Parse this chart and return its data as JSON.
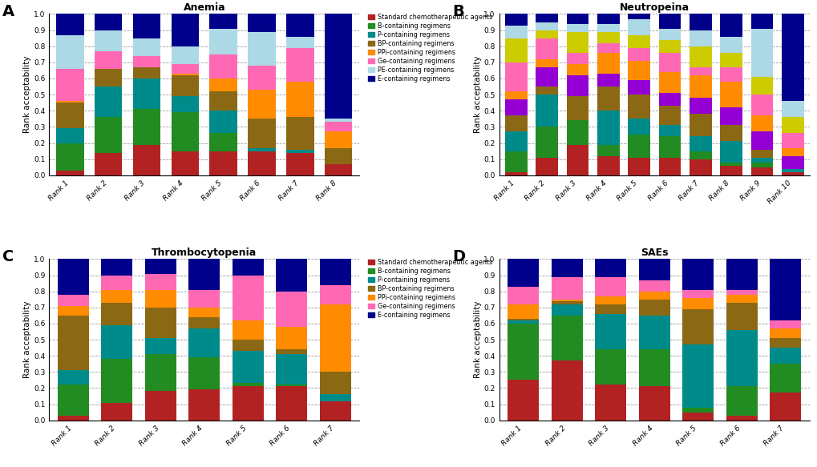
{
  "panel_A": {
    "title": "Anemia",
    "ranks": [
      "Rank 1",
      "Rank 2",
      "Rank 3",
      "Rank 4",
      "Rank 5",
      "Rank 6",
      "Rank 7",
      "Rank 8"
    ],
    "series": {
      "Standard chemotherapeutic agents": [
        0.03,
        0.14,
        0.19,
        0.15,
        0.15,
        0.15,
        0.14,
        0.07
      ],
      "B-containing regimens": [
        0.17,
        0.22,
        0.22,
        0.24,
        0.11,
        0.0,
        0.0,
        0.0
      ],
      "P-containing regimens": [
        0.09,
        0.19,
        0.19,
        0.1,
        0.14,
        0.02,
        0.02,
        0.0
      ],
      "BP-containing regimens": [
        0.16,
        0.11,
        0.07,
        0.13,
        0.12,
        0.18,
        0.2,
        0.1
      ],
      "PPi-containing regimens": [
        0.01,
        0.0,
        0.0,
        0.01,
        0.08,
        0.18,
        0.22,
        0.1
      ],
      "Ge-containing regimens": [
        0.2,
        0.11,
        0.07,
        0.06,
        0.15,
        0.15,
        0.21,
        0.06
      ],
      "PE-containing regimens": [
        0.21,
        0.13,
        0.11,
        0.11,
        0.16,
        0.21,
        0.07,
        0.02
      ],
      "E-containing regimens": [
        0.13,
        0.1,
        0.15,
        0.2,
        0.09,
        0.11,
        0.14,
        0.65
      ]
    }
  },
  "panel_B": {
    "title": "Neutropeina",
    "ranks": [
      "Rank 1",
      "Rank 2",
      "Rank 3",
      "Rank 4",
      "Rank 5",
      "Rank 6",
      "Rank 7",
      "Rank 8",
      "Rank 9",
      "Rank 10"
    ],
    "series": {
      "Standard chemotherapeutic agents": [
        0.02,
        0.11,
        0.19,
        0.12,
        0.11,
        0.11,
        0.1,
        0.06,
        0.05,
        0.02
      ],
      "B-containing regimens": [
        0.13,
        0.19,
        0.15,
        0.07,
        0.14,
        0.13,
        0.05,
        0.02,
        0.03,
        0.0
      ],
      "P-containing regimens": [
        0.12,
        0.2,
        0.0,
        0.21,
        0.1,
        0.07,
        0.09,
        0.13,
        0.03,
        0.02
      ],
      "BP-containing regimens": [
        0.1,
        0.05,
        0.15,
        0.15,
        0.15,
        0.12,
        0.14,
        0.1,
        0.05,
        0.0
      ],
      "Pi-containing regimens": [
        0.1,
        0.12,
        0.13,
        0.08,
        0.09,
        0.08,
        0.1,
        0.11,
        0.11,
        0.08
      ],
      "PPi-containing regimens": [
        0.05,
        0.05,
        0.07,
        0.13,
        0.12,
        0.13,
        0.14,
        0.16,
        0.1,
        0.05
      ],
      "Ge-containing regimens": [
        0.18,
        0.13,
        0.07,
        0.06,
        0.08,
        0.12,
        0.05,
        0.09,
        0.13,
        0.09
      ],
      "Za-containing regimens": [
        0.15,
        0.05,
        0.13,
        0.07,
        0.08,
        0.08,
        0.13,
        0.09,
        0.11,
        0.1
      ],
      "PE-containing regimens": [
        0.08,
        0.05,
        0.05,
        0.05,
        0.1,
        0.07,
        0.1,
        0.1,
        0.3,
        0.1
      ],
      "E-containing regimens": [
        0.07,
        0.05,
        0.06,
        0.06,
        0.03,
        0.09,
        0.1,
        0.14,
        0.09,
        0.54
      ]
    }
  },
  "panel_C": {
    "title": "Thrombocytopenia",
    "ranks": [
      "Rank 1",
      "Rank 2",
      "Rank 3",
      "Rank 4",
      "Rank 5",
      "Rank 6",
      "Rank 7"
    ],
    "series": {
      "Standard chemotherapeutic agents": [
        0.03,
        0.11,
        0.18,
        0.19,
        0.21,
        0.21,
        0.12
      ],
      "B-containing regimens": [
        0.19,
        0.27,
        0.23,
        0.2,
        0.02,
        0.01,
        0.0
      ],
      "P-containing regimens": [
        0.09,
        0.21,
        0.1,
        0.18,
        0.2,
        0.19,
        0.04
      ],
      "BP-containing regimens": [
        0.34,
        0.14,
        0.19,
        0.07,
        0.07,
        0.03,
        0.14
      ],
      "PPi-containing regimens": [
        0.06,
        0.08,
        0.11,
        0.06,
        0.12,
        0.14,
        0.42
      ],
      "Ge-containing regimens": [
        0.07,
        0.09,
        0.1,
        0.11,
        0.28,
        0.22,
        0.12
      ],
      "E-containing regimens": [
        0.22,
        0.1,
        0.09,
        0.19,
        0.1,
        0.2,
        0.16
      ]
    }
  },
  "panel_D": {
    "title": "SAEs",
    "ranks": [
      "Rank 1",
      "Rank 2",
      "Rank 3",
      "Rank 4",
      "Rank 5",
      "Rank 6",
      "Rank 7"
    ],
    "series": {
      "Standard chemotherapeutic agents": [
        0.25,
        0.37,
        0.22,
        0.21,
        0.05,
        0.03,
        0.17
      ],
      "B-containing regimens": [
        0.35,
        0.28,
        0.22,
        0.23,
        0.03,
        0.18,
        0.18
      ],
      "P-containing regimens": [
        0.02,
        0.07,
        0.22,
        0.21,
        0.39,
        0.35,
        0.1
      ],
      "BP-containing regimens": [
        0.01,
        0.02,
        0.06,
        0.1,
        0.22,
        0.17,
        0.06
      ],
      "PPi-containing regimens": [
        0.09,
        0.01,
        0.05,
        0.05,
        0.07,
        0.05,
        0.06
      ],
      "Ge-containing regimens": [
        0.11,
        0.14,
        0.12,
        0.07,
        0.05,
        0.03,
        0.05
      ],
      "E-containing regimens": [
        0.17,
        0.11,
        0.11,
        0.13,
        0.19,
        0.19,
        0.38
      ]
    }
  },
  "colors": {
    "Standard chemotherapeutic agents": "#B22222",
    "B-containing regimens": "#228B22",
    "P-containing regimens": "#008B8B",
    "BP-containing regimens": "#8B6914",
    "Pi-containing regimens": "#9400D3",
    "PPi-containing regimens": "#FF8C00",
    "Ge-containing regimens": "#FF69B4",
    "Za-containing regimens": "#CCCC00",
    "PE-containing regimens": "#ADD8E6",
    "E-containing regimens": "#00008B"
  },
  "ylabel": "Rank acceptability",
  "ylim": [
    0.0,
    1.0
  ],
  "yticks": [
    0.0,
    0.1,
    0.2,
    0.3,
    0.4,
    0.5,
    0.6,
    0.7,
    0.8,
    0.9,
    1.0
  ]
}
